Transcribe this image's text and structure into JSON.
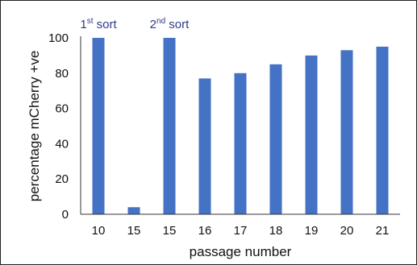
{
  "colors": {
    "bar": "#4472C4",
    "axis": "#333333",
    "annotation": "#2E3A87"
  },
  "chart_data": {
    "type": "bar",
    "categories": [
      "10",
      "15",
      "15",
      "16",
      "17",
      "18",
      "19",
      "20",
      "21"
    ],
    "values": [
      100,
      4,
      100,
      77,
      80,
      85,
      90,
      93,
      95
    ],
    "xlabel": "passage number",
    "ylabel": "percentage mCherry +ve",
    "ylim": [
      0,
      100
    ],
    "yticks": [
      0,
      20,
      40,
      60,
      80,
      100
    ],
    "grid": false,
    "legend": "none",
    "annotations": [
      {
        "category_index": 0,
        "prefix": "1",
        "superscript": "st",
        "suffix": " sort"
      },
      {
        "category_index": 2,
        "prefix": "2",
        "superscript": "nd",
        "suffix": " sort"
      }
    ]
  }
}
